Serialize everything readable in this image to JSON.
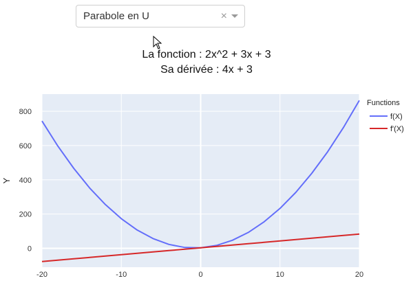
{
  "dropdown": {
    "selected": "Parabole en U",
    "clear_glyph": "×",
    "arrow_icon": "caret-down-icon"
  },
  "description": {
    "line1": "La fonction : 2x^2 + 3x + 3",
    "line2": "Sa dérivée : 4x + 3"
  },
  "chart_data": {
    "type": "line",
    "ylabel": "Y",
    "xlabel": "",
    "xlim": [
      -20,
      20
    ],
    "ylim": [
      -110,
      900
    ],
    "x_ticks": [
      -20,
      -10,
      0,
      10,
      20
    ],
    "y_ticks": [
      0,
      200,
      400,
      600,
      800
    ],
    "grid": true,
    "plot_background": "#e5ecf6",
    "legend": {
      "title": "Functions",
      "placement": "right"
    },
    "x": [
      -20,
      -18,
      -16,
      -14,
      -12,
      -10,
      -8,
      -6,
      -4,
      -2,
      0,
      2,
      4,
      6,
      8,
      10,
      12,
      14,
      16,
      18,
      20
    ],
    "series": [
      {
        "name": "f(X)",
        "color": "#636efa",
        "values": [
          743,
          597,
          467,
          353,
          255,
          173,
          107,
          57,
          23,
          5,
          3,
          17,
          47,
          93,
          155,
          233,
          327,
          437,
          563,
          705,
          863
        ]
      },
      {
        "name": "f'(X)",
        "color": "#d62728",
        "values": [
          -77,
          -69,
          -61,
          -53,
          -45,
          -37,
          -29,
          -21,
          -13,
          -5,
          3,
          11,
          19,
          27,
          35,
          43,
          51,
          59,
          67,
          75,
          83
        ]
      }
    ]
  }
}
